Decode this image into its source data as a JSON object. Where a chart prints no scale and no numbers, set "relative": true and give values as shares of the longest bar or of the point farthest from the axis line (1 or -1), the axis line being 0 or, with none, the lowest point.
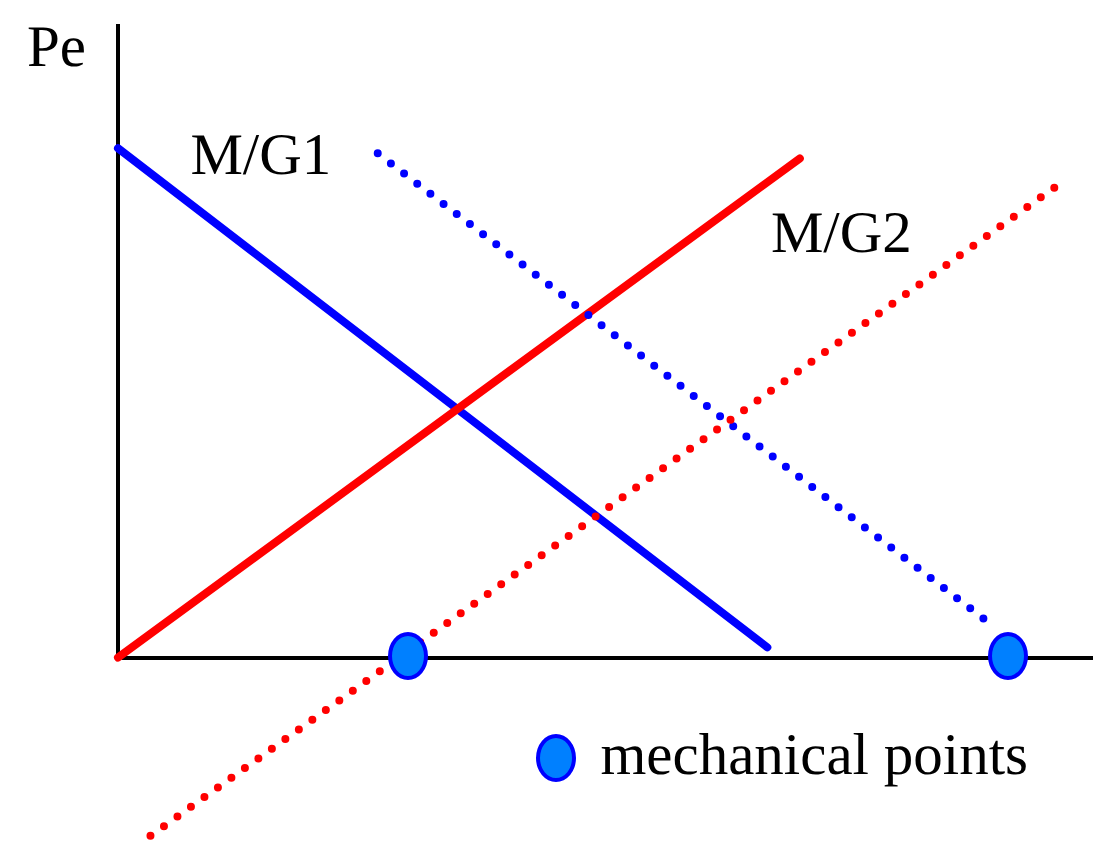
{
  "chart_data": {
    "type": "line",
    "relative": true,
    "ylabel": "Pe",
    "annotations": [
      "mechanical points"
    ],
    "categories": [
      null,
      null,
      null,
      null,
      null,
      null,
      null,
      null,
      null,
      null,
      null,
      null,
      null,
      null,
      null,
      null,
      null,
      null,
      null,
      null,
      null,
      null,
      null,
      null,
      null,
      null,
      null,
      null,
      null,
      null,
      null,
      null,
      null,
      null,
      null,
      null,
      null,
      null,
      null,
      null,
      null,
      null,
      null,
      null,
      null,
      null,
      null,
      null,
      null,
      null,
      null,
      null,
      null,
      null,
      null,
      null,
      null,
      null,
      null,
      null,
      null
    ],
    "series": [
      {
        "name": "M/G1",
        "color": "#0000ff",
        "line_style": "solid",
        "values": [
          1,
          null,
          null,
          null,
          null,
          null,
          null,
          null,
          null,
          null,
          null,
          null,
          null,
          null,
          null,
          null,
          null,
          null,
          null,
          null,
          null,
          null,
          null,
          null,
          null,
          null,
          null,
          null,
          null,
          null,
          null,
          null,
          null,
          null,
          null,
          null,
          null,
          null,
          null,
          null,
          0.02,
          null,
          null,
          null,
          null,
          null,
          null,
          null,
          null,
          null,
          null,
          null,
          null,
          null,
          null,
          null,
          null,
          null,
          null,
          null,
          null
        ]
      },
      {
        "color": "#ff0000",
        "line_style": "solid",
        "values": [
          0,
          null,
          null,
          null,
          null,
          null,
          null,
          null,
          null,
          null,
          null,
          null,
          null,
          null,
          null,
          null,
          null,
          null,
          null,
          null,
          null,
          null,
          null,
          null,
          null,
          null,
          null,
          null,
          null,
          null,
          null,
          null,
          null,
          null,
          null,
          null,
          null,
          null,
          null,
          null,
          null,
          null,
          0.98,
          null,
          null,
          null,
          null,
          null,
          null,
          null,
          null,
          null,
          null,
          null,
          null,
          null,
          null,
          null,
          null,
          null,
          null
        ]
      },
      {
        "color": "#0000ff",
        "line_style": "dotted",
        "values": [
          null,
          null,
          null,
          null,
          null,
          null,
          null,
          null,
          null,
          null,
          null,
          null,
          null,
          null,
          null,
          null,
          0.99,
          null,
          null,
          null,
          null,
          null,
          null,
          null,
          null,
          null,
          null,
          null,
          null,
          null,
          null,
          null,
          null,
          null,
          null,
          null,
          null,
          null,
          null,
          null,
          null,
          null,
          null,
          null,
          null,
          null,
          null,
          null,
          null,
          null,
          null,
          null,
          null,
          null,
          0.06,
          null,
          null,
          null,
          null,
          null,
          null
        ]
      },
      {
        "name": "M/G2",
        "color": "#ff0000",
        "line_style": "dotted",
        "values": [
          null,
          null,
          -0.35,
          null,
          null,
          null,
          null,
          null,
          null,
          null,
          null,
          null,
          null,
          null,
          null,
          null,
          null,
          null,
          null,
          null,
          null,
          null,
          null,
          null,
          null,
          null,
          null,
          null,
          null,
          null,
          null,
          null,
          null,
          null,
          null,
          null,
          null,
          null,
          null,
          null,
          null,
          null,
          null,
          null,
          null,
          null,
          null,
          null,
          null,
          null,
          null,
          null,
          null,
          null,
          null,
          null,
          null,
          null,
          0.93,
          null,
          null
        ]
      }
    ]
  }
}
